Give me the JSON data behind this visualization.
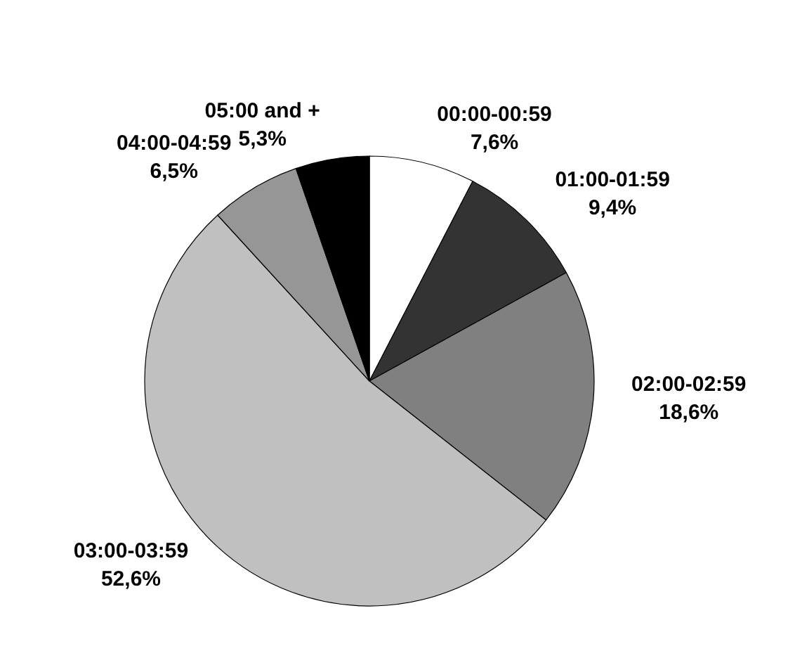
{
  "chart_data": {
    "type": "pie",
    "categories": [
      "00:00-00:59",
      "01:00-01:59",
      "02:00-02:59",
      "03:00-03:59",
      "04:00-04:59",
      "05:00 and +"
    ],
    "values": [
      7.6,
      9.4,
      18.6,
      52.6,
      6.5,
      5.3
    ],
    "value_labels": [
      "7,6%",
      "9,4%",
      "18,6%",
      "52,6%",
      "6,5%",
      "5,3%"
    ],
    "colors": [
      "#ffffff",
      "#333333",
      "#808080",
      "#c0c0c0",
      "#969696",
      "#000000"
    ],
    "legend": false
  }
}
